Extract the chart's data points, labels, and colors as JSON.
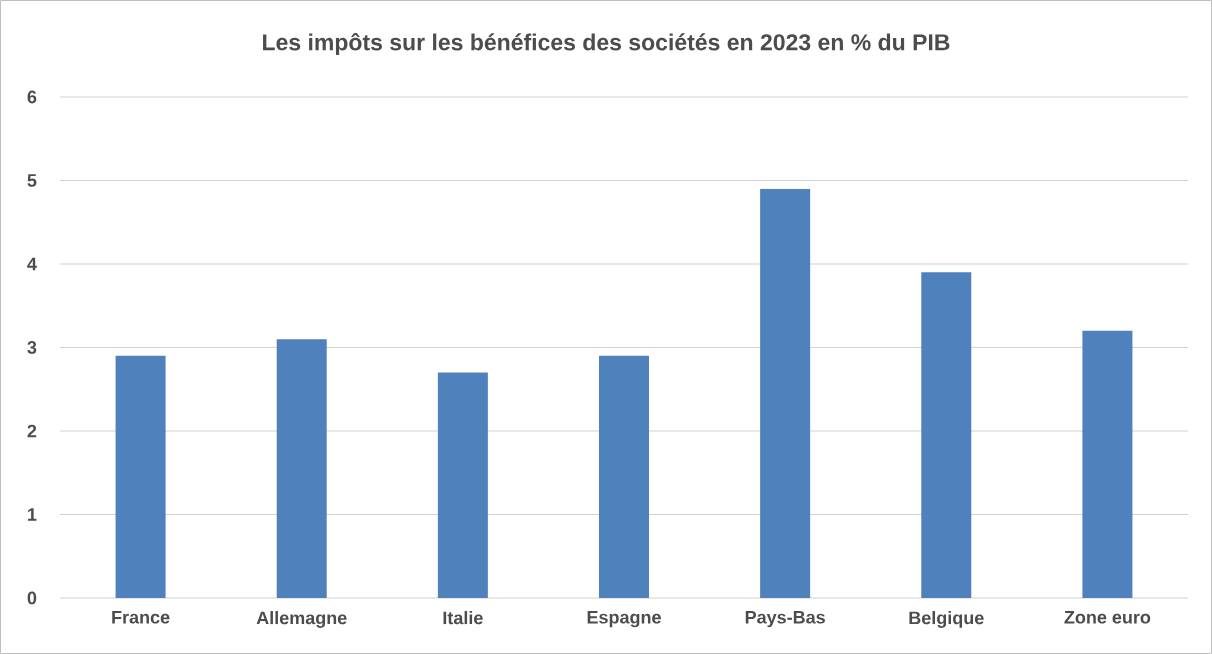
{
  "chart_data": {
    "type": "bar",
    "title": "Les impôts sur les bénéfices des sociétés en 2023 en % du PIB",
    "categories": [
      "France",
      "Allemagne",
      "Italie",
      "Espagne",
      "Pays-Bas",
      "Belgique",
      "Zone euro"
    ],
    "values": [
      2.9,
      3.1,
      2.7,
      2.9,
      4.9,
      3.9,
      3.2
    ],
    "color": "#4f81bd",
    "ylim": [
      0,
      6
    ],
    "yticks": [
      0,
      1,
      2,
      3,
      4,
      5,
      6
    ],
    "grid": "y"
  }
}
